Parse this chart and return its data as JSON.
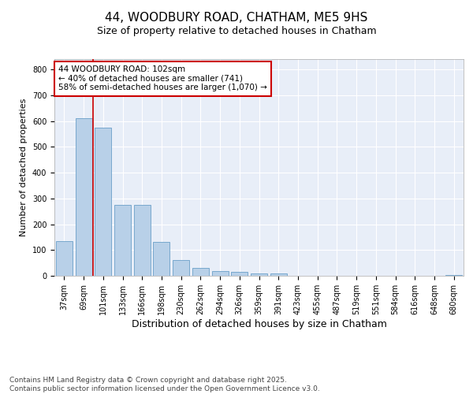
{
  "title1": "44, WOODBURY ROAD, CHATHAM, ME5 9HS",
  "title2": "Size of property relative to detached houses in Chatham",
  "xlabel": "Distribution of detached houses by size in Chatham",
  "ylabel": "Number of detached properties",
  "categories": [
    "37sqm",
    "69sqm",
    "101sqm",
    "133sqm",
    "166sqm",
    "198sqm",
    "230sqm",
    "262sqm",
    "294sqm",
    "326sqm",
    "359sqm",
    "391sqm",
    "423sqm",
    "455sqm",
    "487sqm",
    "519sqm",
    "551sqm",
    "584sqm",
    "616sqm",
    "648sqm",
    "680sqm"
  ],
  "values": [
    135,
    610,
    575,
    275,
    275,
    130,
    60,
    30,
    17,
    15,
    8,
    8,
    0,
    0,
    0,
    0,
    0,
    0,
    0,
    0,
    3
  ],
  "bar_color": "#b8d0e8",
  "bar_edge_color": "#6a9fc8",
  "highlight_index": 2,
  "highlight_line_color": "#cc0000",
  "annotation_text": "44 WOODBURY ROAD: 102sqm\n← 40% of detached houses are smaller (741)\n58% of semi-detached houses are larger (1,070) →",
  "annotation_box_color": "#ffffff",
  "annotation_box_edge_color": "#cc0000",
  "ylim": [
    0,
    840
  ],
  "yticks": [
    0,
    100,
    200,
    300,
    400,
    500,
    600,
    700,
    800
  ],
  "background_color": "#e8eef8",
  "grid_color": "#ffffff",
  "footer_text": "Contains HM Land Registry data © Crown copyright and database right 2025.\nContains public sector information licensed under the Open Government Licence v3.0.",
  "title_fontsize": 11,
  "subtitle_fontsize": 9,
  "xlabel_fontsize": 9,
  "ylabel_fontsize": 8,
  "tick_fontsize": 7,
  "annotation_fontsize": 7.5,
  "footer_fontsize": 6.5
}
